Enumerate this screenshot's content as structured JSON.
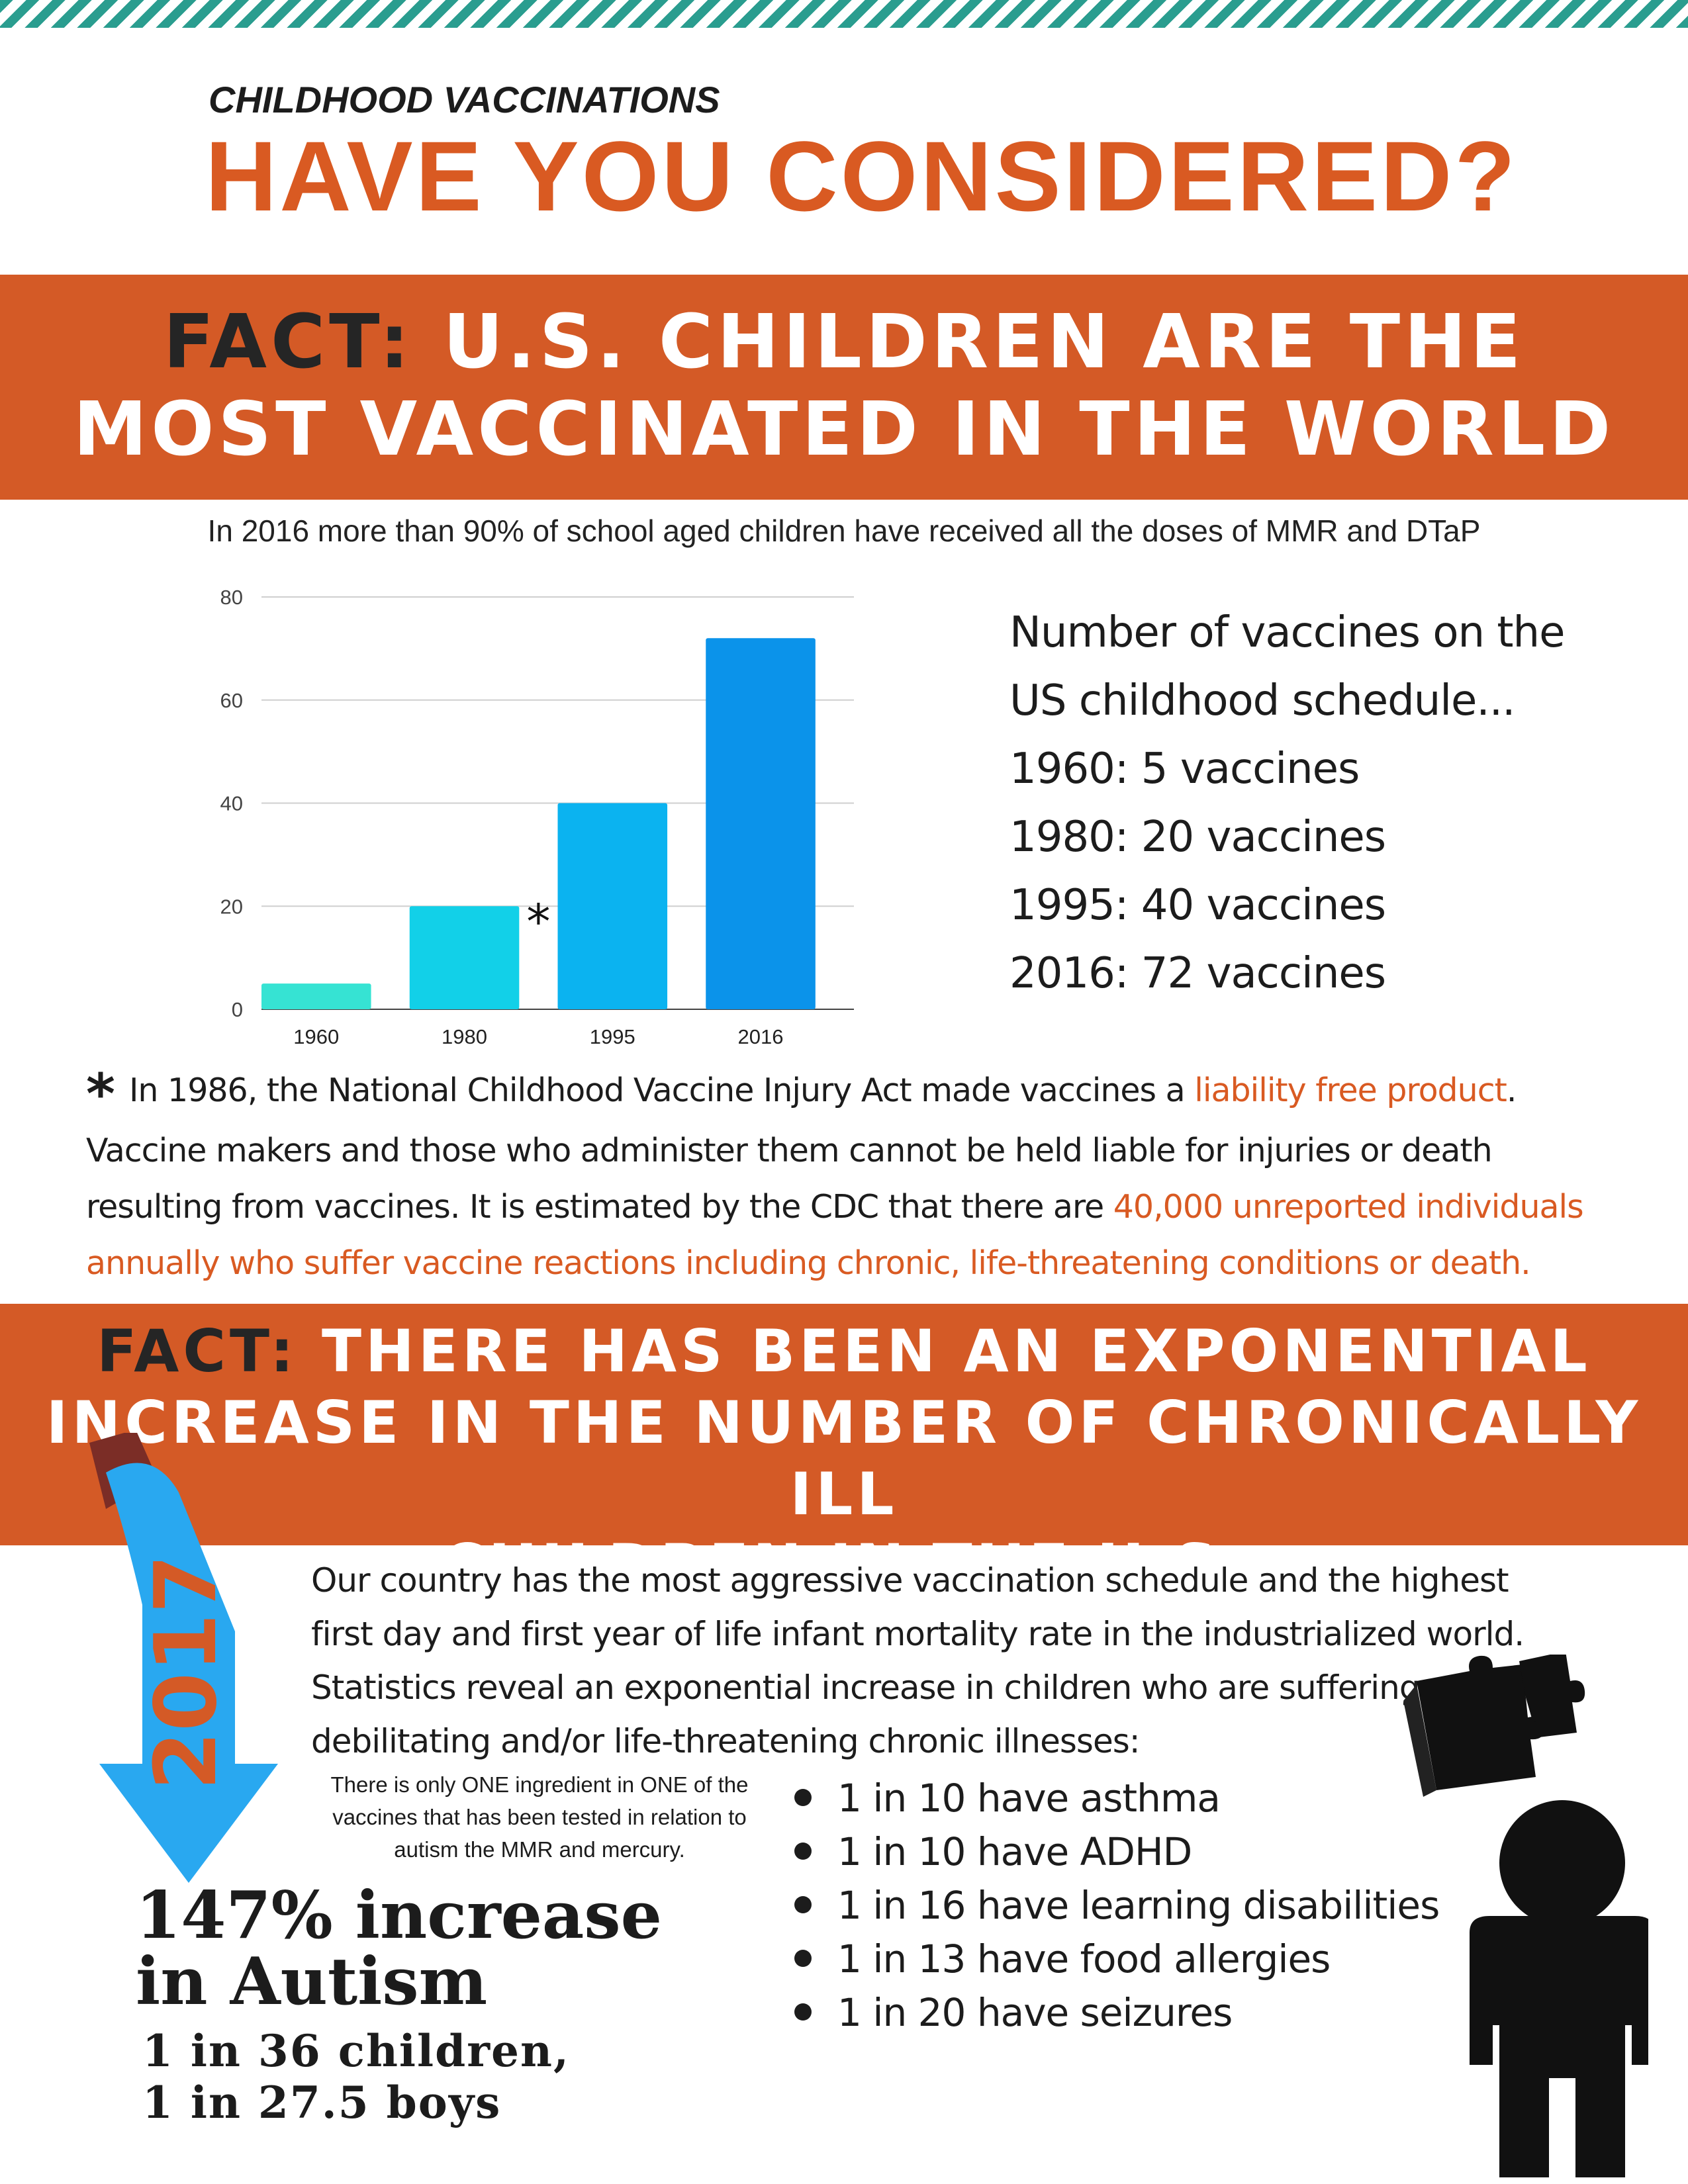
{
  "header": {
    "kicker": "CHILDHOOD VACCINATIONS",
    "headline": "HAVE YOU CONSIDERED?"
  },
  "fact1": {
    "lead": "FACT:",
    "line1_rest": " U.S. CHILDREN ARE THE",
    "line2": "MOST VACCINATED IN THE WORLD",
    "subtitle": "In 2016 more than 90% of school aged children have received all the doses of MMR and DTaP"
  },
  "chart_data": {
    "type": "bar",
    "categories": [
      "1960",
      "1980",
      "1995",
      "2016"
    ],
    "values": [
      5,
      20,
      40,
      72
    ],
    "ylim": [
      0,
      80
    ],
    "yticks": [
      "0",
      "20",
      "40",
      "60",
      "80"
    ],
    "grid": true,
    "bar_colors": [
      "#36e3d3",
      "#12d0e8",
      "#0bb3f0",
      "#0b93ea"
    ],
    "annotation": "*",
    "title": "",
    "xlabel": "",
    "ylabel": ""
  },
  "schedule": {
    "heading_line1": "Number of vaccines on the",
    "heading_line2": "US childhood schedule...",
    "items": [
      "1960: 5 vaccines",
      "1980: 20 vaccines",
      "1995: 40 vaccines",
      "2016: 72 vaccines"
    ]
  },
  "footnote": {
    "star": "*",
    "p1": "In 1986, the National Childhood Vaccine Injury Act made vaccines a ",
    "h1": "liability free product",
    "p2": ". Vaccine makers and those who administer them cannot be held liable for injuries or death resulting from vaccines. It is estimated by the CDC that there are ",
    "h2": "40,000 unreported individuals annually who suffer vaccine reactions including chronic, life-threatening conditions or death."
  },
  "fact2": {
    "lead": "FACT:",
    "line1_rest": " THERE HAS BEEN AN EXPONENTIAL",
    "line2": "INCREASE IN THE NUMBER OF CHRONICALLY ILL",
    "line3": "CHILDREN IN THE U.S."
  },
  "arrow": {
    "year": "2017",
    "color": "#29a8f0"
  },
  "paragraph": "Our country has the most aggressive vaccination schedule and the highest first day and first year of life infant mortality rate in the industrialized world. Statistics reveal an exponential increase in children who are suffering debilitating and/or life-threatening chronic illnesses:",
  "mini_note": "There is only ONE ingredient in ONE of the vaccines that has been tested in relation to autism the MMR and mercury.",
  "bullets": [
    "1 in 10 have asthma",
    "1 in 10  have ADHD",
    "1 in 16 have learning disabilities",
    "1 in 13  have food allergies",
    "1 in 20  have seizures"
  ],
  "autism": {
    "line1": "147% increase",
    "line2": "in Autism",
    "line3": "1 in 36 children,",
    "line4": "1 in 27.5 boys"
  },
  "icons": [
    "puzzle-pieces-icon",
    "child-silhouette-icon",
    "down-arrow-icon"
  ]
}
